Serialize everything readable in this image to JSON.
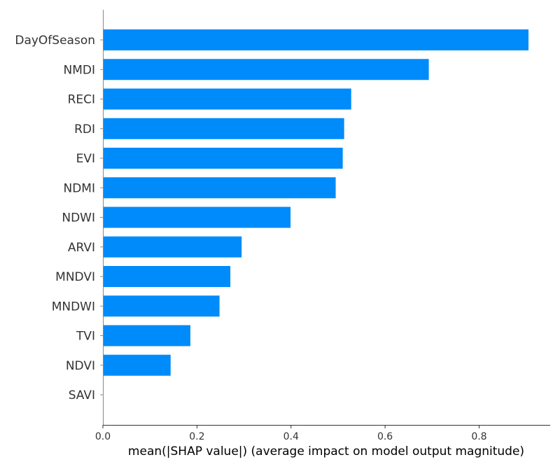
{
  "chart_data": {
    "type": "bar",
    "orientation": "horizontal",
    "categories": [
      "DayOfSeason",
      "NMDI",
      "RECI",
      "RDI",
      "EVI",
      "NDMI",
      "NDWI",
      "ARVI",
      "MNDVI",
      "MNDWI",
      "TVI",
      "NDVI",
      "SAVI"
    ],
    "values": [
      0.905,
      0.693,
      0.528,
      0.513,
      0.51,
      0.495,
      0.399,
      0.295,
      0.271,
      0.248,
      0.186,
      0.144,
      0.0
    ],
    "title": "",
    "xlabel": "mean(|SHAP value|) (average impact on model output magnitude)",
    "ylabel": "",
    "xlim": [
      0,
      0.95
    ],
    "xticks": [
      0.0,
      0.2,
      0.4,
      0.6,
      0.8
    ],
    "xtick_labels": [
      "0.0",
      "0.2",
      "0.4",
      "0.6",
      "0.8"
    ],
    "bar_color": "#008bfb",
    "grid": false,
    "legend": "none"
  }
}
